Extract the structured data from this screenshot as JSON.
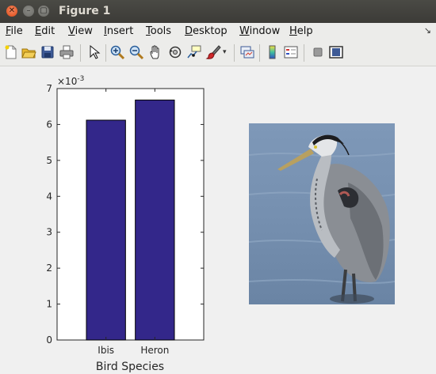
{
  "window": {
    "title": "Figure 1"
  },
  "menu": {
    "items": [
      {
        "mnemonic": "F",
        "rest": "ile"
      },
      {
        "mnemonic": "E",
        "rest": "dit"
      },
      {
        "mnemonic": "V",
        "rest": "iew"
      },
      {
        "mnemonic": "I",
        "rest": "nsert"
      },
      {
        "mnemonic": "T",
        "rest": "ools"
      },
      {
        "mnemonic": "D",
        "rest": "esktop"
      },
      {
        "mnemonic": "W",
        "rest": "indow"
      },
      {
        "mnemonic": "H",
        "rest": "elp"
      }
    ]
  },
  "toolbar": {
    "icons": [
      "new-figure-icon",
      "open-file-icon",
      "save-icon",
      "print-icon",
      "pointer-icon",
      "zoom-in-icon",
      "zoom-out-icon",
      "pan-hand-icon",
      "rotate-3d-icon",
      "data-cursor-icon",
      "brush-icon",
      "brush-dropdown-icon",
      "link-plot-icon",
      "colorbar-icon",
      "legend-icon",
      "hide-plot-tools-icon",
      "show-plot-tools-icon"
    ]
  },
  "colors": {
    "bar": "#33278a"
  },
  "chart_data": {
    "type": "bar",
    "categories": [
      "Ibis",
      "Heron"
    ],
    "values": [
      0.00612,
      0.00668
    ],
    "xlabel": "Bird Species",
    "ylabel": "",
    "ylim": [
      0,
      0.007
    ],
    "yticks": [
      "0",
      "1",
      "2",
      "3",
      "4",
      "5",
      "6",
      "7"
    ],
    "exponent_label": "×10",
    "exponent_power": "-3",
    "grid": false
  },
  "image": {
    "subject": "heron-photo"
  }
}
